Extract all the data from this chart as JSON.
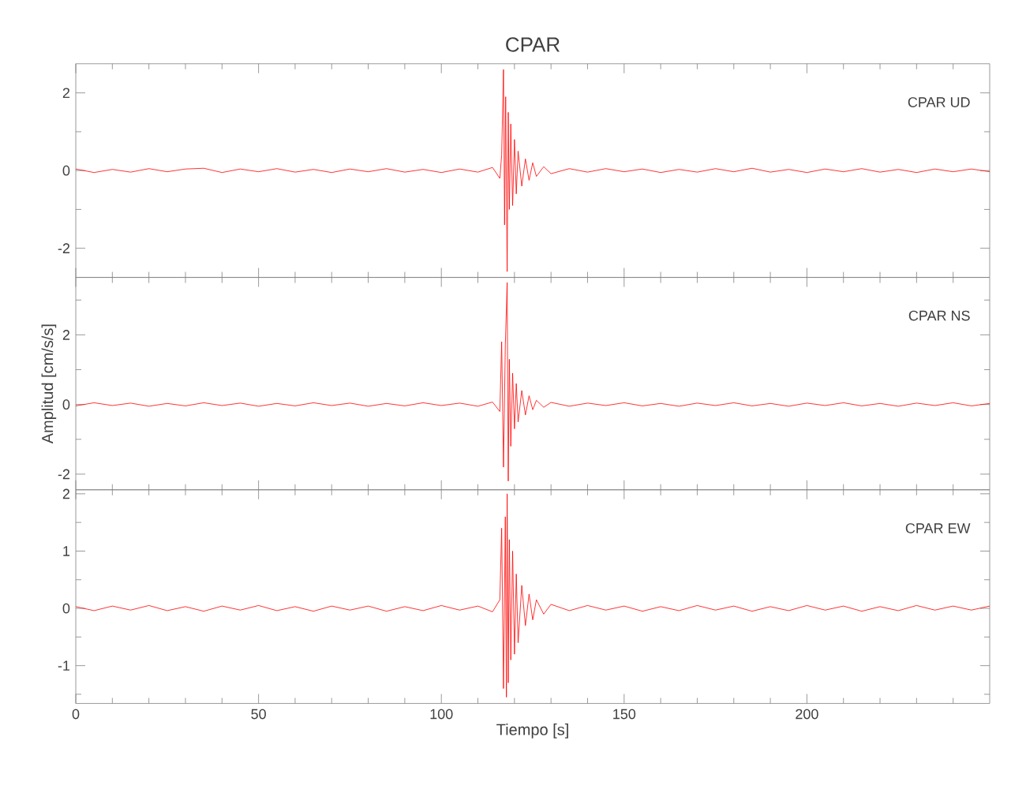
{
  "chart_data": [
    {
      "type": "line",
      "title": "CPAR",
      "annotations": [
        "CPAR UD"
      ],
      "tick_labels": "y",
      "xlim": [
        0,
        250
      ],
      "xticks": [
        0,
        {
          "value": 10,
          "label": null
        },
        {
          "value": 20,
          "label": null
        },
        {
          "value": 30,
          "label": null
        },
        {
          "value": 40,
          "label": null
        },
        50,
        {
          "value": 60,
          "label": null
        },
        {
          "value": 70,
          "label": null
        },
        {
          "value": 80,
          "label": null
        },
        {
          "value": 90,
          "label": null
        },
        100,
        {
          "value": 110,
          "label": null
        },
        {
          "value": 120,
          "label": null
        },
        {
          "value": 130,
          "label": null
        },
        {
          "value": 140,
          "label": null
        },
        150,
        {
          "value": 160,
          "label": null
        },
        {
          "value": 170,
          "label": null
        },
        {
          "value": 180,
          "label": null
        },
        {
          "value": 190,
          "label": null
        },
        200,
        {
          "value": 210,
          "label": null
        },
        {
          "value": 220,
          "label": null
        },
        {
          "value": 230,
          "label": null
        },
        {
          "value": 240,
          "label": null
        }
      ],
      "ylim": [
        -2.75,
        2.75
      ],
      "yticks": [
        -2,
        {
          "value": -1,
          "label": null
        },
        0,
        {
          "value": 1,
          "label": null
        },
        2
      ],
      "series": [
        {
          "color": "#ff0000",
          "x": [
            0,
            5,
            10,
            15,
            20,
            25,
            30,
            35,
            40,
            45,
            50,
            55,
            60,
            65,
            70,
            75,
            80,
            85,
            90,
            95,
            100,
            105,
            110,
            114,
            116,
            116.5,
            117,
            117.3,
            117.6,
            118,
            118.3,
            118.6,
            119,
            119.5,
            120,
            120.5,
            121,
            122,
            123,
            124,
            125,
            126,
            128,
            130,
            135,
            140,
            145,
            150,
            155,
            160,
            165,
            170,
            175,
            180,
            185,
            190,
            195,
            200,
            205,
            210,
            215,
            220,
            225,
            230,
            235,
            240,
            245,
            250
          ],
          "values": [
            0.04,
            -0.05,
            0.03,
            -0.04,
            0.05,
            -0.03,
            0.04,
            0.06,
            -0.05,
            0.04,
            -0.03,
            0.05,
            -0.04,
            0.03,
            -0.05,
            0.04,
            -0.03,
            0.05,
            -0.04,
            0.03,
            -0.05,
            0.04,
            -0.04,
            0.08,
            -0.2,
            0.4,
            2.6,
            -1.4,
            1.9,
            -2.6,
            1.5,
            -1.0,
            1.2,
            -0.9,
            0.8,
            -0.6,
            0.5,
            -0.4,
            0.3,
            -0.25,
            0.2,
            -0.15,
            0.1,
            -0.08,
            0.05,
            -0.04,
            0.05,
            -0.03,
            0.04,
            -0.05,
            0.03,
            -0.04,
            0.05,
            -0.03,
            0.06,
            -0.04,
            0.03,
            -0.05,
            0.04,
            -0.03,
            0.05,
            -0.04,
            0.03,
            -0.05,
            0.04,
            -0.03,
            0.04,
            -0.03
          ]
        }
      ]
    },
    {
      "type": "line",
      "ylabel": "Amplitud [cm/s/s]",
      "annotations": [
        "CPAR NS"
      ],
      "tick_labels": "y",
      "xlim": [
        0,
        250
      ],
      "xticks": [
        0,
        {
          "value": 10,
          "label": null
        },
        {
          "value": 20,
          "label": null
        },
        {
          "value": 30,
          "label": null
        },
        {
          "value": 40,
          "label": null
        },
        50,
        {
          "value": 60,
          "label": null
        },
        {
          "value": 70,
          "label": null
        },
        {
          "value": 80,
          "label": null
        },
        {
          "value": 90,
          "label": null
        },
        100,
        {
          "value": 110,
          "label": null
        },
        {
          "value": 120,
          "label": null
        },
        {
          "value": 130,
          "label": null
        },
        {
          "value": 140,
          "label": null
        },
        150,
        {
          "value": 160,
          "label": null
        },
        {
          "value": 170,
          "label": null
        },
        {
          "value": 180,
          "label": null
        },
        {
          "value": 190,
          "label": null
        },
        200,
        {
          "value": 210,
          "label": null
        },
        {
          "value": 220,
          "label": null
        },
        {
          "value": 230,
          "label": null
        },
        {
          "value": 240,
          "label": null
        }
      ],
      "ylim": [
        -2.45,
        3.65
      ],
      "yticks": [
        -2,
        {
          "value": -1,
          "label": null
        },
        0,
        {
          "value": 1,
          "label": null
        },
        2,
        {
          "value": 3,
          "label": null
        }
      ],
      "series": [
        {
          "color": "#ff0000",
          "x": [
            0,
            5,
            10,
            15,
            20,
            25,
            30,
            35,
            40,
            45,
            50,
            55,
            60,
            65,
            70,
            75,
            80,
            85,
            90,
            95,
            100,
            105,
            110,
            114,
            116,
            116.5,
            117,
            117.5,
            118,
            118.3,
            118.6,
            119,
            119.5,
            120,
            120.5,
            121,
            122,
            123,
            124,
            125,
            126,
            128,
            130,
            135,
            140,
            145,
            150,
            155,
            160,
            165,
            170,
            175,
            180,
            185,
            190,
            195,
            200,
            205,
            210,
            215,
            220,
            225,
            230,
            235,
            240,
            245,
            250
          ],
          "values": [
            -0.04,
            0.05,
            -0.03,
            0.04,
            -0.05,
            0.03,
            -0.04,
            0.05,
            -0.03,
            0.04,
            -0.05,
            0.03,
            -0.04,
            0.05,
            -0.03,
            0.04,
            -0.05,
            0.03,
            -0.04,
            0.05,
            -0.03,
            0.04,
            -0.05,
            0.07,
            -0.2,
            1.8,
            -1.8,
            1.7,
            3.5,
            -2.2,
            1.3,
            -1.2,
            0.9,
            -0.7,
            0.6,
            -0.5,
            0.4,
            -0.3,
            0.25,
            -0.15,
            0.12,
            -0.08,
            0.06,
            -0.05,
            0.04,
            -0.03,
            0.05,
            -0.04,
            0.03,
            -0.05,
            0.04,
            -0.03,
            0.05,
            -0.04,
            0.03,
            -0.05,
            0.04,
            -0.03,
            0.05,
            -0.04,
            0.03,
            -0.05,
            0.04,
            -0.03,
            0.05,
            -0.04,
            0.03
          ]
        }
      ]
    },
    {
      "type": "line",
      "xlabel": "Tiempo [s]",
      "annotations": [
        "CPAR EW"
      ],
      "xlim": [
        0,
        250
      ],
      "xticks": [
        0,
        {
          "value": 10,
          "label": null
        },
        {
          "value": 20,
          "label": null
        },
        {
          "value": 30,
          "label": null
        },
        {
          "value": 40,
          "label": null
        },
        50,
        {
          "value": 60,
          "label": null
        },
        {
          "value": 70,
          "label": null
        },
        {
          "value": 80,
          "label": null
        },
        {
          "value": 90,
          "label": null
        },
        100,
        {
          "value": 110,
          "label": null
        },
        {
          "value": 120,
          "label": null
        },
        {
          "value": 130,
          "label": null
        },
        {
          "value": 140,
          "label": null
        },
        150,
        {
          "value": 160,
          "label": null
        },
        {
          "value": 170,
          "label": null
        },
        {
          "value": 180,
          "label": null
        },
        {
          "value": 190,
          "label": null
        },
        200,
        {
          "value": 210,
          "label": null
        },
        {
          "value": 220,
          "label": null
        },
        {
          "value": 230,
          "label": null
        },
        {
          "value": 240,
          "label": null
        }
      ],
      "ylim": [
        -1.66,
        2.07
      ],
      "yticks": [
        {
          "value": -1.5,
          "label": null
        },
        -1,
        {
          "value": -0.5,
          "label": null
        },
        0,
        {
          "value": 0.5,
          "label": null
        },
        1,
        {
          "value": 1.5,
          "label": null
        },
        2
      ],
      "series": [
        {
          "color": "#ff0000",
          "x": [
            0,
            5,
            10,
            15,
            20,
            25,
            30,
            35,
            40,
            45,
            50,
            55,
            60,
            65,
            70,
            75,
            80,
            85,
            90,
            95,
            100,
            105,
            110,
            114,
            116,
            116.5,
            117,
            117.5,
            117.8,
            118,
            118.3,
            118.6,
            119,
            119.5,
            120,
            120.5,
            121,
            122,
            123,
            124,
            125,
            126,
            128,
            130,
            135,
            140,
            145,
            150,
            155,
            160,
            165,
            170,
            175,
            180,
            185,
            190,
            195,
            200,
            205,
            210,
            215,
            220,
            225,
            230,
            235,
            240,
            245,
            250
          ],
          "values": [
            0.03,
            -0.04,
            0.04,
            -0.03,
            0.05,
            -0.04,
            0.03,
            -0.05,
            0.04,
            -0.03,
            0.05,
            -0.04,
            0.03,
            -0.05,
            0.04,
            -0.03,
            0.04,
            -0.05,
            0.03,
            -0.04,
            0.05,
            -0.03,
            0.04,
            -0.06,
            0.15,
            1.4,
            -1.4,
            1.6,
            -1.55,
            2.0,
            -1.3,
            1.2,
            -0.9,
            1.0,
            -0.8,
            0.6,
            -0.6,
            0.4,
            -0.3,
            0.25,
            -0.2,
            0.15,
            -0.1,
            0.07,
            -0.04,
            0.05,
            -0.03,
            0.04,
            -0.05,
            0.03,
            -0.04,
            0.05,
            -0.03,
            0.04,
            -0.05,
            0.03,
            -0.04,
            0.05,
            -0.03,
            0.04,
            -0.05,
            0.03,
            -0.04,
            0.05,
            -0.03,
            0.04,
            -0.03,
            0.04
          ]
        }
      ]
    }
  ]
}
